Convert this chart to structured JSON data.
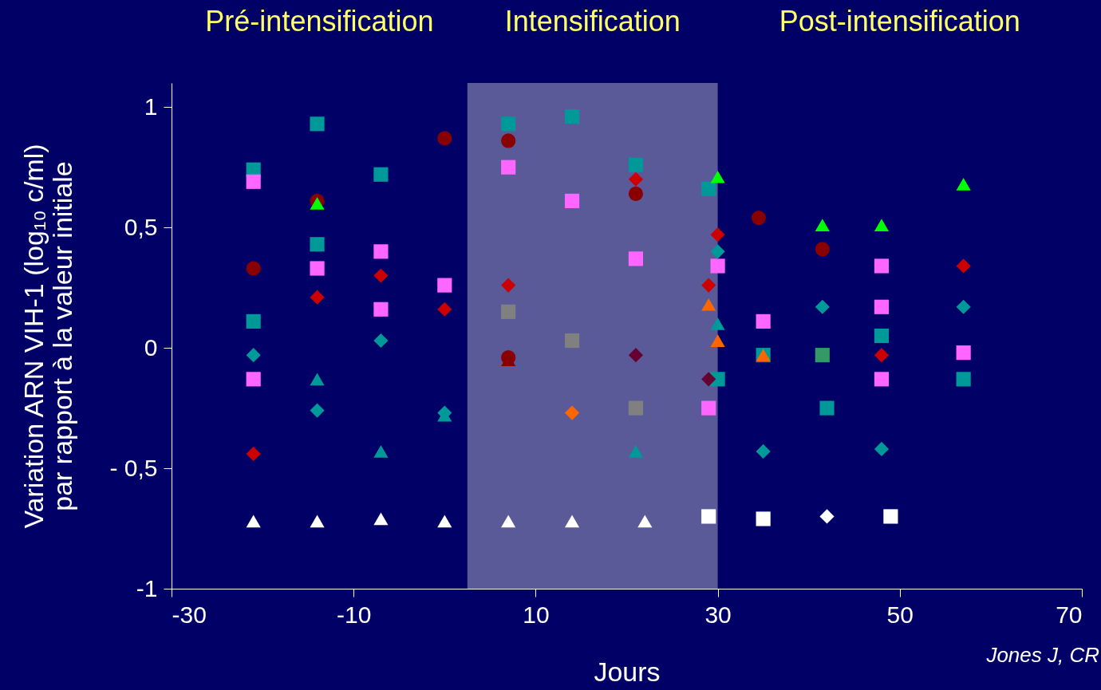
{
  "chart_data": {
    "type": "scatter",
    "xlabel": "Jours",
    "ylabel": "Variation ARN VIH-1 (log₁₀ c/ml)\npar rapport à la valeur initiale",
    "xlim": [
      -30,
      70
    ],
    "xticks": [
      -30,
      -10,
      10,
      30,
      50,
      70
    ],
    "ylim": [
      -1,
      1.1
    ],
    "yticks": [
      {
        "value": -1,
        "label": "-1"
      },
      {
        "value": -0.5,
        "label": "- 0,5"
      },
      0,
      {
        "value": 0.5,
        "label": "0,5"
      },
      1
    ],
    "grid": false,
    "bands": [
      {
        "axis": "x",
        "from": 2.5,
        "to": 30,
        "color": "#5a5a99"
      }
    ],
    "annotations": [
      "Pré-intensification",
      "Intensification",
      "Post-intensification",
      "Jones J, CR"
    ],
    "series": [
      {
        "color": "#009999",
        "marker": "square",
        "x": [
          -21,
          -21,
          -14,
          -14,
          -7,
          7,
          14,
          21,
          29,
          30,
          35,
          42,
          48,
          57
        ],
        "values": [
          0.74,
          0.11,
          0.93,
          0.43,
          0.72,
          0.93,
          0.96,
          0.76,
          0.66,
          -0.13,
          -0.03,
          -0.25,
          0.05,
          -0.13
        ]
      },
      {
        "color": "#ff66ff",
        "marker": "square",
        "x": [
          -21,
          -21,
          -14,
          -7,
          -7,
          0,
          7,
          14,
          21,
          29,
          30,
          35,
          48,
          48,
          48,
          57
        ],
        "values": [
          0.69,
          -0.13,
          0.33,
          0.4,
          0.16,
          0.26,
          0.75,
          0.61,
          0.37,
          -0.25,
          0.34,
          0.11,
          0.34,
          0.17,
          -0.13,
          -0.02
        ]
      },
      {
        "color": "#880000",
        "marker": "circle",
        "x": [
          -21,
          -14,
          0,
          7,
          7,
          21,
          34.5,
          41.5
        ],
        "values": [
          0.33,
          0.61,
          0.87,
          0.86,
          -0.04,
          0.64,
          0.54,
          0.41
        ]
      },
      {
        "color": "#880000",
        "marker": "triangle",
        "x": [
          7
        ],
        "values": [
          -0.05
        ]
      },
      {
        "color": "#cc0000",
        "marker": "diamond",
        "x": [
          -21,
          -14,
          -7,
          0,
          7,
          21,
          29,
          30,
          48,
          57
        ],
        "values": [
          -0.44,
          0.21,
          0.3,
          0.16,
          0.26,
          0.7,
          0.26,
          0.47,
          -0.03,
          0.34
        ]
      },
      {
        "color": "#009999",
        "marker": "diamond",
        "x": [
          -21,
          -14,
          -7,
          0,
          30,
          35,
          41.5,
          48,
          57
        ],
        "values": [
          -0.03,
          -0.26,
          0.03,
          -0.27,
          0.4,
          -0.43,
          0.17,
          -0.42,
          0.17
        ]
      },
      {
        "color": "#00ff00",
        "marker": "triangle",
        "x": [
          -14,
          30,
          41.5,
          48,
          57
        ],
        "values": [
          0.6,
          0.71,
          0.51,
          0.51,
          0.68
        ]
      },
      {
        "color": "#009999",
        "marker": "triangle",
        "x": [
          -14,
          -7,
          0,
          21,
          30
        ],
        "values": [
          -0.13,
          -0.43,
          -0.28,
          -0.43,
          0.1
        ]
      },
      {
        "color": "#ffffff",
        "marker": "triangle",
        "x": [
          -21,
          -14,
          -7,
          0,
          7,
          14,
          22
        ],
        "values": [
          -0.72,
          -0.72,
          -0.71,
          -0.72,
          -0.72,
          -0.72,
          -0.72
        ]
      },
      {
        "color": "#ffffff",
        "marker": "square",
        "x": [
          29,
          35,
          49
        ],
        "values": [
          -0.7,
          -0.71,
          -0.7
        ]
      },
      {
        "color": "#ffffff",
        "marker": "diamond",
        "x": [
          42
        ],
        "values": [
          -0.7
        ]
      },
      {
        "color": "#808080",
        "marker": "square",
        "x": [
          7,
          14,
          21
        ],
        "values": [
          0.15,
          0.03,
          -0.25
        ]
      },
      {
        "color": "#ff6600",
        "marker": "diamond",
        "x": [
          14
        ],
        "values": [
          -0.27
        ]
      },
      {
        "color": "#ff6600",
        "marker": "triangle",
        "x": [
          29,
          30,
          35
        ],
        "values": [
          0.18,
          0.03,
          -0.03
        ]
      },
      {
        "color": "#660033",
        "marker": "diamond",
        "x": [
          21,
          29
        ],
        "values": [
          -0.03,
          -0.13
        ]
      },
      {
        "color": "#339966",
        "marker": "square",
        "x": [
          41.5
        ],
        "values": [
          -0.03
        ]
      }
    ]
  }
}
